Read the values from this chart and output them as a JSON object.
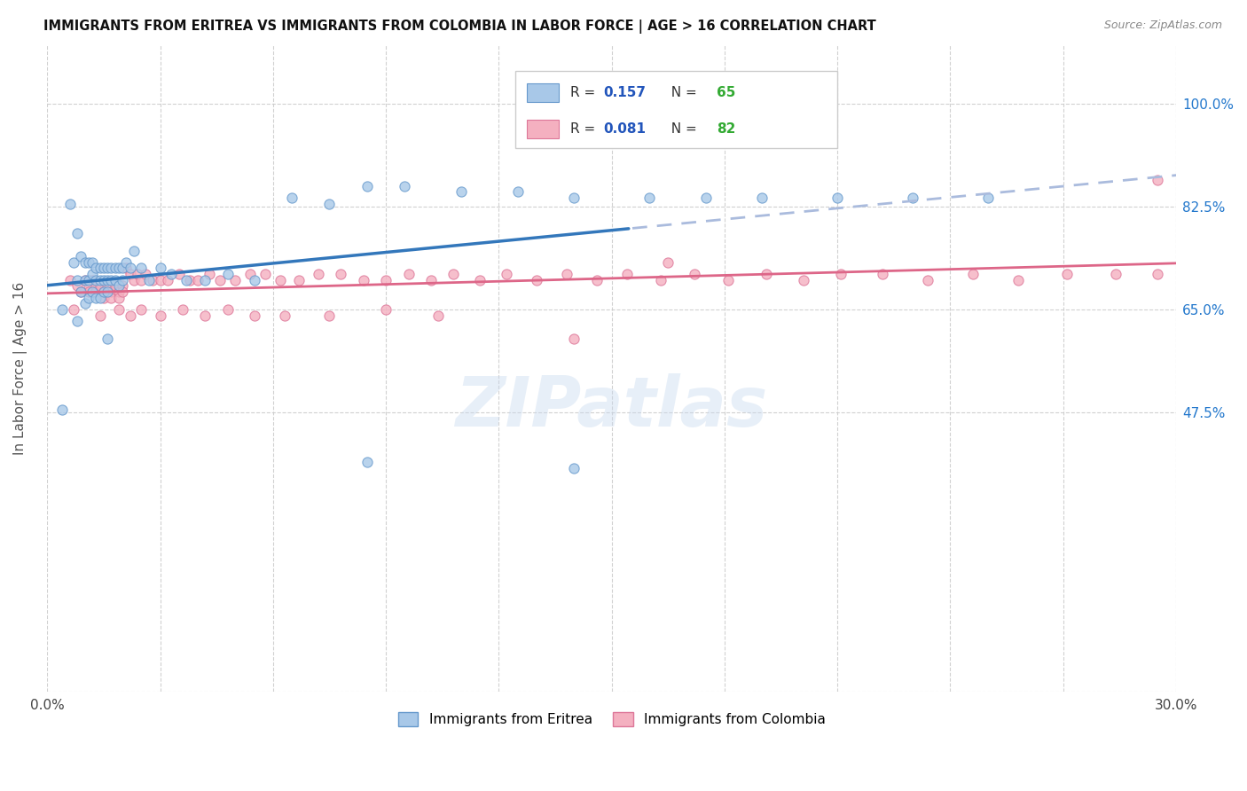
{
  "title": "IMMIGRANTS FROM ERITREA VS IMMIGRANTS FROM COLOMBIA IN LABOR FORCE | AGE > 16 CORRELATION CHART",
  "source": "Source: ZipAtlas.com",
  "ylabel": "In Labor Force | Age > 16",
  "xlim": [
    0.0,
    0.3
  ],
  "ylim": [
    0.0,
    1.1
  ],
  "ytick_vals": [
    0.0,
    0.475,
    0.65,
    0.825,
    1.0
  ],
  "ytick_labels": [
    "",
    "47.5%",
    "65.0%",
    "82.5%",
    "100.0%"
  ],
  "xtick_vals": [
    0.0,
    0.03,
    0.06,
    0.09,
    0.12,
    0.15,
    0.18,
    0.21,
    0.24,
    0.27,
    0.3
  ],
  "xtick_labels": [
    "0.0%",
    "",
    "",
    "",
    "",
    "",
    "",
    "",
    "",
    "",
    "30.0%"
  ],
  "eritrea_color": "#a8c8e8",
  "eritrea_edge": "#6699cc",
  "colombia_color": "#f4b0c0",
  "colombia_edge": "#dd7799",
  "eritrea_line_color": "#3377bb",
  "eritrea_line_solid_end": 0.155,
  "colombia_line_color": "#dd6688",
  "colombia_dashed_color": "#aabbdd",
  "watermark": "ZIPatlas",
  "eritrea_R": 0.157,
  "eritrea_N": 65,
  "colombia_R": 0.081,
  "colombia_N": 82,
  "legend_R_color": "#2255bb",
  "legend_N_color": "#33aa33",
  "eritrea_x": [
    0.004,
    0.006,
    0.007,
    0.008,
    0.008,
    0.009,
    0.009,
    0.01,
    0.01,
    0.01,
    0.011,
    0.011,
    0.011,
    0.012,
    0.012,
    0.012,
    0.013,
    0.013,
    0.013,
    0.014,
    0.014,
    0.014,
    0.015,
    0.015,
    0.015,
    0.016,
    0.016,
    0.016,
    0.017,
    0.017,
    0.018,
    0.018,
    0.019,
    0.019,
    0.02,
    0.02,
    0.021,
    0.022,
    0.023,
    0.025,
    0.027,
    0.03,
    0.033,
    0.037,
    0.042,
    0.048,
    0.055,
    0.065,
    0.075,
    0.085,
    0.095,
    0.11,
    0.125,
    0.14,
    0.16,
    0.175,
    0.19,
    0.21,
    0.23,
    0.25,
    0.004,
    0.008,
    0.016,
    0.085,
    0.14
  ],
  "eritrea_y": [
    0.65,
    0.83,
    0.73,
    0.78,
    0.7,
    0.74,
    0.68,
    0.73,
    0.7,
    0.66,
    0.73,
    0.7,
    0.67,
    0.73,
    0.71,
    0.68,
    0.72,
    0.7,
    0.67,
    0.72,
    0.7,
    0.67,
    0.72,
    0.7,
    0.68,
    0.72,
    0.7,
    0.68,
    0.72,
    0.7,
    0.72,
    0.7,
    0.72,
    0.69,
    0.72,
    0.7,
    0.73,
    0.72,
    0.75,
    0.72,
    0.7,
    0.72,
    0.71,
    0.7,
    0.7,
    0.71,
    0.7,
    0.84,
    0.83,
    0.86,
    0.86,
    0.85,
    0.85,
    0.84,
    0.84,
    0.84,
    0.84,
    0.84,
    0.84,
    0.84,
    0.48,
    0.63,
    0.6,
    0.39,
    0.38
  ],
  "colombia_x": [
    0.006,
    0.008,
    0.009,
    0.01,
    0.011,
    0.011,
    0.012,
    0.013,
    0.013,
    0.014,
    0.015,
    0.015,
    0.016,
    0.017,
    0.017,
    0.018,
    0.019,
    0.019,
    0.02,
    0.02,
    0.021,
    0.022,
    0.023,
    0.024,
    0.025,
    0.026,
    0.028,
    0.03,
    0.032,
    0.035,
    0.038,
    0.04,
    0.043,
    0.046,
    0.05,
    0.054,
    0.058,
    0.062,
    0.067,
    0.072,
    0.078,
    0.084,
    0.09,
    0.096,
    0.102,
    0.108,
    0.115,
    0.122,
    0.13,
    0.138,
    0.146,
    0.154,
    0.163,
    0.172,
    0.181,
    0.191,
    0.201,
    0.211,
    0.222,
    0.234,
    0.246,
    0.258,
    0.271,
    0.284,
    0.295,
    0.007,
    0.014,
    0.019,
    0.022,
    0.025,
    0.03,
    0.036,
    0.042,
    0.048,
    0.055,
    0.063,
    0.075,
    0.09,
    0.104,
    0.14,
    0.165,
    0.295
  ],
  "colombia_y": [
    0.7,
    0.69,
    0.68,
    0.7,
    0.69,
    0.68,
    0.7,
    0.69,
    0.68,
    0.69,
    0.68,
    0.67,
    0.69,
    0.68,
    0.67,
    0.69,
    0.68,
    0.67,
    0.69,
    0.68,
    0.72,
    0.71,
    0.7,
    0.71,
    0.7,
    0.71,
    0.7,
    0.7,
    0.7,
    0.71,
    0.7,
    0.7,
    0.71,
    0.7,
    0.7,
    0.71,
    0.71,
    0.7,
    0.7,
    0.71,
    0.71,
    0.7,
    0.7,
    0.71,
    0.7,
    0.71,
    0.7,
    0.71,
    0.7,
    0.71,
    0.7,
    0.71,
    0.7,
    0.71,
    0.7,
    0.71,
    0.7,
    0.71,
    0.71,
    0.7,
    0.71,
    0.7,
    0.71,
    0.71,
    0.71,
    0.65,
    0.64,
    0.65,
    0.64,
    0.65,
    0.64,
    0.65,
    0.64,
    0.65,
    0.64,
    0.64,
    0.64,
    0.65,
    0.64,
    0.6,
    0.73,
    0.87
  ]
}
